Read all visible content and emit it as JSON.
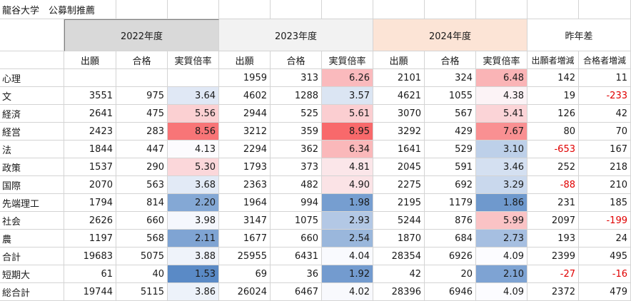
{
  "title": "龍谷大学　公募制推薦",
  "years": [
    {
      "label": "2022年度",
      "bg": "#d9d9d9"
    },
    {
      "label": "2023年度",
      "bg": "#f2f2f2"
    },
    {
      "label": "2024年度",
      "bg": "#fce4d6"
    }
  ],
  "diff_header": "昨年差",
  "sub_headers": [
    "出願",
    "合格",
    "実質倍率",
    "出願",
    "合格",
    "実質倍率",
    "出願",
    "合格",
    "実質倍率",
    "出願者増減",
    "合格者増減"
  ],
  "rows": [
    {
      "name": "心理",
      "y2022": [
        "",
        "",
        ""
      ],
      "y2023": [
        "1959",
        "313",
        "6.26"
      ],
      "y2024": [
        "2101",
        "324",
        "6.48"
      ],
      "diff": [
        "142",
        "11"
      ]
    },
    {
      "name": "文",
      "y2022": [
        "3551",
        "975",
        "3.64"
      ],
      "y2023": [
        "4602",
        "1288",
        "3.57"
      ],
      "y2024": [
        "4621",
        "1055",
        "4.38"
      ],
      "diff": [
        "19",
        "-233"
      ]
    },
    {
      "name": "経済",
      "y2022": [
        "2641",
        "475",
        "5.56"
      ],
      "y2023": [
        "2944",
        "525",
        "5.61"
      ],
      "y2024": [
        "3070",
        "567",
        "5.41"
      ],
      "diff": [
        "126",
        "42"
      ]
    },
    {
      "name": "経営",
      "y2022": [
        "2423",
        "283",
        "8.56"
      ],
      "y2023": [
        "3212",
        "359",
        "8.95"
      ],
      "y2024": [
        "3292",
        "429",
        "7.67"
      ],
      "diff": [
        "80",
        "70"
      ]
    },
    {
      "name": "法",
      "y2022": [
        "1844",
        "447",
        "4.13"
      ],
      "y2023": [
        "2294",
        "362",
        "6.34"
      ],
      "y2024": [
        "1641",
        "529",
        "3.10"
      ],
      "diff": [
        "-653",
        "167"
      ]
    },
    {
      "name": "政策",
      "y2022": [
        "1537",
        "290",
        "5.30"
      ],
      "y2023": [
        "1793",
        "373",
        "4.81"
      ],
      "y2024": [
        "2045",
        "591",
        "3.46"
      ],
      "diff": [
        "252",
        "218"
      ]
    },
    {
      "name": "国際",
      "y2022": [
        "2070",
        "563",
        "3.68"
      ],
      "y2023": [
        "2363",
        "482",
        "4.90"
      ],
      "y2024": [
        "2275",
        "692",
        "3.29"
      ],
      "diff": [
        "-88",
        "210"
      ]
    },
    {
      "name": "先端理工",
      "y2022": [
        "1794",
        "814",
        "2.20"
      ],
      "y2023": [
        "1964",
        "994",
        "1.98"
      ],
      "y2024": [
        "2195",
        "1179",
        "1.86"
      ],
      "diff": [
        "231",
        "185"
      ]
    },
    {
      "name": "社会",
      "y2022": [
        "2626",
        "660",
        "3.98"
      ],
      "y2023": [
        "3147",
        "1075",
        "2.93"
      ],
      "y2024": [
        "5244",
        "876",
        "5.99"
      ],
      "diff": [
        "2097",
        "-199"
      ]
    },
    {
      "name": "農",
      "y2022": [
        "1197",
        "568",
        "2.11"
      ],
      "y2023": [
        "1677",
        "660",
        "2.54"
      ],
      "y2024": [
        "1870",
        "684",
        "2.73"
      ],
      "diff": [
        "193",
        "24"
      ]
    },
    {
      "name": "合計",
      "y2022": [
        "19683",
        "5075",
        "3.88"
      ],
      "y2023": [
        "25955",
        "6431",
        "4.04"
      ],
      "y2024": [
        "28354",
        "6926",
        "4.09"
      ],
      "diff": [
        "2399",
        "495"
      ]
    },
    {
      "name": "短期大",
      "y2022": [
        "61",
        "40",
        "1.53"
      ],
      "y2023": [
        "69",
        "36",
        "1.92"
      ],
      "y2024": [
        "42",
        "20",
        "2.10"
      ],
      "diff": [
        "-27",
        "-16"
      ]
    },
    {
      "name": "総合計",
      "y2022": [
        "19744",
        "5115",
        "3.86"
      ],
      "y2023": [
        "26024",
        "6467",
        "4.02"
      ],
      "y2024": [
        "28396",
        "6946",
        "4.09"
      ],
      "diff": [
        "2372",
        "479"
      ]
    }
  ],
  "colors": {
    "ratio_high": "#f8696b",
    "ratio_mid": "#fcfcff",
    "ratio_low": "#5a8ac6",
    "negative_text": "#e00000",
    "gridline": "#d4d4d4"
  }
}
